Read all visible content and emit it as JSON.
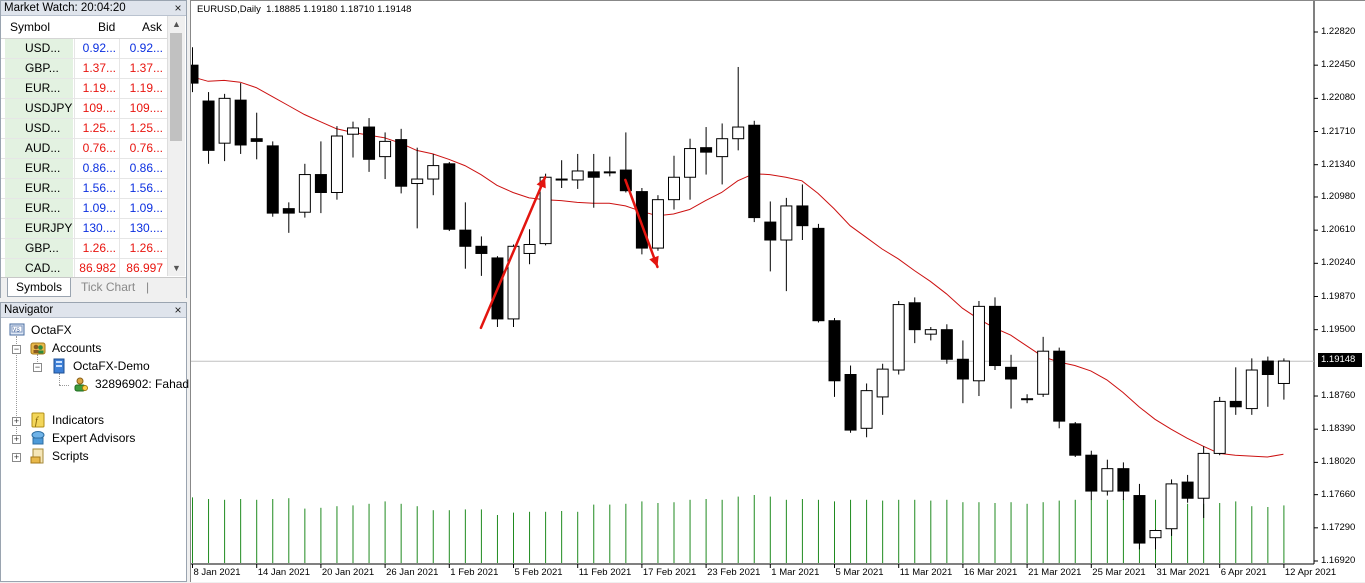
{
  "market_watch": {
    "title": "Market Watch: 20:04:20",
    "close": "×",
    "columns": {
      "symbol": "Symbol",
      "bid": "Bid",
      "ask": "Ask"
    },
    "rows": [
      {
        "symbol": "USD...",
        "bid": "0.92...",
        "ask": "0.92...",
        "dir": "up"
      },
      {
        "symbol": "GBP...",
        "bid": "1.37...",
        "ask": "1.37...",
        "dir": "down"
      },
      {
        "symbol": "EUR...",
        "bid": "1.19...",
        "ask": "1.19...",
        "dir": "down"
      },
      {
        "symbol": "USDJPY",
        "bid": "109....",
        "ask": "109....",
        "dir": "down"
      },
      {
        "symbol": "USD...",
        "bid": "1.25...",
        "ask": "1.25...",
        "dir": "down"
      },
      {
        "symbol": "AUD...",
        "bid": "0.76...",
        "ask": "0.76...",
        "dir": "down"
      },
      {
        "symbol": "EUR...",
        "bid": "0.86...",
        "ask": "0.86...",
        "dir": "up"
      },
      {
        "symbol": "EUR...",
        "bid": "1.56...",
        "ask": "1.56...",
        "dir": "up"
      },
      {
        "symbol": "EUR...",
        "bid": "1.09...",
        "ask": "1.09...",
        "dir": "up"
      },
      {
        "symbol": "EURJPY",
        "bid": "130....",
        "ask": "130....",
        "dir": "up"
      },
      {
        "symbol": "GBP...",
        "bid": "1.26...",
        "ask": "1.26...",
        "dir": "down"
      },
      {
        "symbol": "CAD...",
        "bid": "86.982",
        "ask": "86.997",
        "dir": "down"
      }
    ],
    "tabs": {
      "symbols": "Symbols",
      "tick_chart": "Tick Chart",
      "sep": "|"
    },
    "colors": {
      "up": "#0b2fe0",
      "down": "#e8150f",
      "symbol_bg": "#e3f2e1"
    }
  },
  "navigator": {
    "title": "Navigator",
    "close": "×",
    "root": "OctaFX",
    "accounts": "Accounts",
    "server": "OctaFX-Demo",
    "account": "32896902: Fahad",
    "indicators": "Indicators",
    "experts": "Expert Advisors",
    "scripts": "Scripts",
    "expand_plus": "+",
    "collapse_minus": "−"
  },
  "chart_header": {
    "symbol_tf": "EURUSD,Daily",
    "ohlc": "1.18885 1.19180 1.18710 1.19148"
  },
  "chart_data": {
    "type": "candlestick",
    "symbol": "EURUSD",
    "timeframe": "Daily",
    "bid_price": "1.19148",
    "y_ticks": [
      "1.22820",
      "1.22450",
      "1.22080",
      "1.21710",
      "1.21340",
      "1.20980",
      "1.20610",
      "1.20240",
      "1.19870",
      "1.19500",
      "1.19148",
      "1.18760",
      "1.18390",
      "1.18020",
      "1.17660",
      "1.17290",
      "1.16920"
    ],
    "y_range": [
      1.1692,
      1.2282
    ],
    "x_labels": [
      "8 Jan 2021",
      "14 Jan 2021",
      "20 Jan 2021",
      "26 Jan 2021",
      "1 Feb 2021",
      "5 Feb 2021",
      "11 Feb 2021",
      "17 Feb 2021",
      "23 Feb 2021",
      "1 Mar 2021",
      "5 Mar 2021",
      "11 Mar 2021",
      "16 Mar 2021",
      "21 Mar 2021",
      "25 Mar 2021",
      "31 Mar 2021",
      "6 Apr 2021",
      "12 Apr 2021"
    ],
    "candles": [
      {
        "o": 1.2245,
        "h": 1.2265,
        "l": 1.2215,
        "c": 1.2225
      },
      {
        "o": 1.2205,
        "h": 1.2215,
        "l": 1.2135,
        "c": 1.215
      },
      {
        "o": 1.2158,
        "h": 1.2213,
        "l": 1.2138,
        "c": 1.2208
      },
      {
        "o": 1.2206,
        "h": 1.2225,
        "l": 1.2146,
        "c": 1.2156
      },
      {
        "o": 1.2163,
        "h": 1.2192,
        "l": 1.214,
        "c": 1.216
      },
      {
        "o": 1.2155,
        "h": 1.216,
        "l": 1.2076,
        "c": 1.208
      },
      {
        "o": 1.2085,
        "h": 1.2092,
        "l": 1.2058,
        "c": 1.208
      },
      {
        "o": 1.2081,
        "h": 1.2135,
        "l": 1.2075,
        "c": 1.2123
      },
      {
        "o": 1.2123,
        "h": 1.216,
        "l": 1.208,
        "c": 1.2103
      },
      {
        "o": 1.2103,
        "h": 1.2177,
        "l": 1.2095,
        "c": 1.2166
      },
      {
        "o": 1.2168,
        "h": 1.2182,
        "l": 1.2142,
        "c": 1.2175
      },
      {
        "o": 1.2176,
        "h": 1.2186,
        "l": 1.2126,
        "c": 1.214
      },
      {
        "o": 1.2143,
        "h": 1.217,
        "l": 1.2118,
        "c": 1.216
      },
      {
        "o": 1.2162,
        "h": 1.2174,
        "l": 1.2102,
        "c": 1.211
      },
      {
        "o": 1.2113,
        "h": 1.2153,
        "l": 1.2063,
        "c": 1.2118
      },
      {
        "o": 1.2118,
        "h": 1.2146,
        "l": 1.21,
        "c": 1.2133
      },
      {
        "o": 1.2135,
        "h": 1.2137,
        "l": 1.206,
        "c": 1.2062
      },
      {
        "o": 1.2061,
        "h": 1.2092,
        "l": 1.2018,
        "c": 1.2043
      },
      {
        "o": 1.2043,
        "h": 1.2054,
        "l": 1.201,
        "c": 1.2035
      },
      {
        "o": 1.203,
        "h": 1.2032,
        "l": 1.1953,
        "c": 1.1962
      },
      {
        "o": 1.1962,
        "h": 1.2045,
        "l": 1.1953,
        "c": 1.2043
      },
      {
        "o": 1.2035,
        "h": 1.2062,
        "l": 1.2023,
        "c": 1.2045
      },
      {
        "o": 1.2046,
        "h": 1.2124,
        "l": 1.2044,
        "c": 1.212
      },
      {
        "o": 1.2117,
        "h": 1.2139,
        "l": 1.2108,
        "c": 1.2118
      },
      {
        "o": 1.2117,
        "h": 1.2146,
        "l": 1.2107,
        "c": 1.2127
      },
      {
        "o": 1.2126,
        "h": 1.2146,
        "l": 1.2086,
        "c": 1.212
      },
      {
        "o": 1.2126,
        "h": 1.2143,
        "l": 1.2121,
        "c": 1.2125
      },
      {
        "o": 1.2128,
        "h": 1.217,
        "l": 1.2103,
        "c": 1.2105
      },
      {
        "o": 1.2104,
        "h": 1.2108,
        "l": 1.2034,
        "c": 1.2041
      },
      {
        "o": 1.2041,
        "h": 1.21,
        "l": 1.2038,
        "c": 1.2095
      },
      {
        "o": 1.2095,
        "h": 1.2144,
        "l": 1.2084,
        "c": 1.212
      },
      {
        "o": 1.212,
        "h": 1.2163,
        "l": 1.2095,
        "c": 1.2152
      },
      {
        "o": 1.2153,
        "h": 1.2176,
        "l": 1.2123,
        "c": 1.2148
      },
      {
        "o": 1.2143,
        "h": 1.218,
        "l": 1.2112,
        "c": 1.2163
      },
      {
        "o": 1.2163,
        "h": 1.2243,
        "l": 1.215,
        "c": 1.2176
      },
      {
        "o": 1.2178,
        "h": 1.2183,
        "l": 1.207,
        "c": 1.2075
      },
      {
        "o": 1.207,
        "h": 1.2093,
        "l": 1.2015,
        "c": 1.205
      },
      {
        "o": 1.205,
        "h": 1.2097,
        "l": 1.1993,
        "c": 1.2088
      },
      {
        "o": 1.2088,
        "h": 1.2112,
        "l": 1.205,
        "c": 1.2066
      },
      {
        "o": 1.2063,
        "h": 1.2068,
        "l": 1.1958,
        "c": 1.196
      },
      {
        "o": 1.196,
        "h": 1.1963,
        "l": 1.1875,
        "c": 1.1893
      },
      {
        "o": 1.19,
        "h": 1.191,
        "l": 1.1835,
        "c": 1.1838
      },
      {
        "o": 1.184,
        "h": 1.189,
        "l": 1.183,
        "c": 1.1882
      },
      {
        "o": 1.1875,
        "h": 1.1912,
        "l": 1.1855,
        "c": 1.1906
      },
      {
        "o": 1.1905,
        "h": 1.1982,
        "l": 1.19,
        "c": 1.1978
      },
      {
        "o": 1.198,
        "h": 1.1986,
        "l": 1.1935,
        "c": 1.195
      },
      {
        "o": 1.1945,
        "h": 1.1953,
        "l": 1.1938,
        "c": 1.195
      },
      {
        "o": 1.195,
        "h": 1.1956,
        "l": 1.1912,
        "c": 1.1917
      },
      {
        "o": 1.1917,
        "h": 1.1938,
        "l": 1.1868,
        "c": 1.1895
      },
      {
        "o": 1.1893,
        "h": 1.1982,
        "l": 1.1876,
        "c": 1.1976
      },
      {
        "o": 1.1976,
        "h": 1.1986,
        "l": 1.1905,
        "c": 1.191
      },
      {
        "o": 1.1908,
        "h": 1.1922,
        "l": 1.1862,
        "c": 1.1895
      },
      {
        "o": 1.1872,
        "h": 1.1878,
        "l": 1.1868,
        "c": 1.1873
      },
      {
        "o": 1.1878,
        "h": 1.1942,
        "l": 1.1875,
        "c": 1.1926
      },
      {
        "o": 1.1926,
        "h": 1.193,
        "l": 1.184,
        "c": 1.1848
      },
      {
        "o": 1.1845,
        "h": 1.1847,
        "l": 1.1808,
        "c": 1.181
      },
      {
        "o": 1.181,
        "h": 1.1815,
        "l": 1.176,
        "c": 1.177
      },
      {
        "o": 1.177,
        "h": 1.1805,
        "l": 1.1765,
        "c": 1.1795
      },
      {
        "o": 1.1795,
        "h": 1.1802,
        "l": 1.176,
        "c": 1.177
      },
      {
        "o": 1.1765,
        "h": 1.1778,
        "l": 1.1705,
        "c": 1.1712
      },
      {
        "o": 1.1718,
        "h": 1.1727,
        "l": 1.1705,
        "c": 1.1726
      },
      {
        "o": 1.1728,
        "h": 1.1783,
        "l": 1.172,
        "c": 1.1778
      },
      {
        "o": 1.178,
        "h": 1.1788,
        "l": 1.1757,
        "c": 1.1762
      },
      {
        "o": 1.1762,
        "h": 1.182,
        "l": 1.174,
        "c": 1.1812
      },
      {
        "o": 1.1812,
        "h": 1.1875,
        "l": 1.181,
        "c": 1.187
      },
      {
        "o": 1.187,
        "h": 1.1908,
        "l": 1.1855,
        "c": 1.1864
      },
      {
        "o": 1.1862,
        "h": 1.1918,
        "l": 1.1855,
        "c": 1.1905
      },
      {
        "o": 1.1915,
        "h": 1.192,
        "l": 1.1864,
        "c": 1.19
      },
      {
        "o": 1.189,
        "h": 1.1918,
        "l": 1.1872,
        "c": 1.1915
      }
    ],
    "ma": [
      1.2232,
      1.2227,
      1.2228,
      1.2226,
      1.222,
      1.221,
      1.22,
      1.219,
      1.2182,
      1.2174,
      1.217,
      1.2167,
      1.2164,
      1.2158,
      1.215,
      1.2146,
      1.214,
      1.2133,
      1.2123,
      1.2111,
      1.2103,
      1.2097,
      1.2095,
      1.2094,
      1.2092,
      1.2091,
      1.2091,
      1.2088,
      1.2082,
      1.2077,
      1.2079,
      1.2084,
      1.2094,
      1.2103,
      1.2116,
      1.2124,
      1.2123,
      1.212,
      1.2116,
      1.2102,
      1.2085,
      1.2066,
      1.2053,
      1.204,
      1.2029,
      1.2016,
      1.2004,
      1.199,
      1.1974,
      1.1962,
      1.1952,
      1.1944,
      1.1932,
      1.192,
      1.1914,
      1.191,
      1.1904,
      1.1894,
      1.188,
      1.1864,
      1.185,
      1.1839,
      1.1829,
      1.182,
      1.1812,
      1.181,
      1.1809,
      1.1808,
      1.1811
    ],
    "volume": [
      0.82,
      0.8,
      0.79,
      0.8,
      0.79,
      0.8,
      0.81,
      0.68,
      0.69,
      0.71,
      0.72,
      0.74,
      0.77,
      0.74,
      0.71,
      0.66,
      0.66,
      0.67,
      0.67,
      0.6,
      0.63,
      0.64,
      0.64,
      0.65,
      0.64,
      0.73,
      0.73,
      0.74,
      0.77,
      0.75,
      0.76,
      0.79,
      0.8,
      0.79,
      0.83,
      0.85,
      0.83,
      0.79,
      0.8,
      0.79,
      0.77,
      0.79,
      0.79,
      0.78,
      0.79,
      0.79,
      0.78,
      0.79,
      0.76,
      0.76,
      0.75,
      0.76,
      0.74,
      0.76,
      0.78,
      0.79,
      0.79,
      0.79,
      0.8,
      0.78,
      0.79,
      0.77,
      0.74,
      0.74,
      0.75,
      0.77,
      0.71,
      0.7,
      0.72
    ],
    "annotations": [
      {
        "type": "arrow",
        "color": "#e3150f",
        "from_index": 18,
        "from_price": 1.1952,
        "to_index": 22,
        "to_price": 1.212
      },
      {
        "type": "arrow",
        "color": "#e3150f",
        "from_index": 27,
        "from_price": 1.2117,
        "to_index": 29,
        "to_price": 1.202
      }
    ],
    "colors": {
      "bull_fill": "#ffffff",
      "bear_fill": "#000000",
      "ma": "#cc1111",
      "volume": "#1f8a1f",
      "grid_line": "#c0c0c0"
    }
  }
}
